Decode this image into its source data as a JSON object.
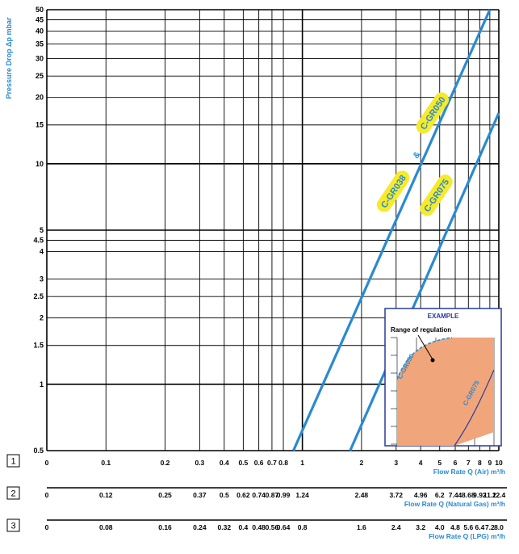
{
  "chart_data": {
    "type": "line",
    "ylabel": "Pressure Drop Δp mbar",
    "y_scale": "log",
    "ylim": [
      0.5,
      50
    ],
    "y_ticks": [
      "0.5",
      "1",
      "1.5",
      "2",
      "2.5",
      "3",
      "4",
      "4.5",
      "5",
      "10",
      "15",
      "20",
      "25",
      "30",
      "35",
      "40",
      "45",
      "50"
    ],
    "y_ticks_values": [
      0.5,
      1,
      1.5,
      2,
      2.5,
      3,
      4,
      4.5,
      5,
      10,
      15,
      20,
      25,
      30,
      35,
      40,
      45,
      50
    ],
    "x_scale": "log",
    "xlim": [
      0.05,
      10
    ],
    "axes": [
      {
        "number": "1",
        "label": "Flow Rate Q (Air) m³/h",
        "ticks": [
          "0",
          "0.1",
          "0.2",
          "0.3",
          "0.4",
          "0.5",
          "0.6",
          "0.7",
          "0.8",
          "1",
          "2",
          "3",
          "4",
          "5",
          "6",
          "7",
          "8",
          "9",
          "10"
        ],
        "ticks_at_air": [
          0.05,
          0.1,
          0.2,
          0.3,
          0.4,
          0.5,
          0.6,
          0.7,
          0.8,
          1,
          2,
          3,
          4,
          5,
          6,
          7,
          8,
          9,
          10
        ]
      },
      {
        "number": "2",
        "label": "Flow Rate Q (Natural Gas) m³/h",
        "ticks": [
          "0",
          "0.12",
          "0.25",
          "0.37",
          "0.5",
          "0.62",
          "0.74",
          "0.87",
          "0.99",
          "1.24",
          "2.48",
          "3.72",
          "4.96",
          "6.2",
          "7.44",
          "8.68",
          "9.92",
          "11.2",
          "12.4"
        ],
        "ticks_at_air": [
          0.05,
          0.1,
          0.2,
          0.3,
          0.4,
          0.5,
          0.6,
          0.7,
          0.8,
          1,
          2,
          3,
          4,
          5,
          6,
          7,
          8,
          9,
          10
        ]
      },
      {
        "number": "3",
        "label": "Flow Rate Q (LPG) m³/h",
        "ticks": [
          "0",
          "0.08",
          "0.16",
          "0.24",
          "0.32",
          "0.4",
          "0.48",
          "0.56",
          "0.64",
          "0.8",
          "1.6",
          "2.4",
          "3.2",
          "4.0",
          "4.8",
          "5.6",
          "6.4",
          "7.2",
          "8.0"
        ],
        "ticks_at_air": [
          0.05,
          0.1,
          0.2,
          0.3,
          0.4,
          0.5,
          0.6,
          0.7,
          0.8,
          1,
          2,
          3,
          4,
          5,
          6,
          7,
          8,
          9,
          10
        ]
      }
    ],
    "series": [
      {
        "name": "C-GR038 & C-GR050",
        "x": [
          0.9,
          9.0
        ],
        "y": [
          0.5,
          50
        ]
      },
      {
        "name": "C-GR075",
        "x": [
          1.75,
          10
        ],
        "y": [
          0.5,
          17
        ]
      }
    ],
    "labels": [
      {
        "text": "C-GR038",
        "x": 2.9,
        "y": 7.5,
        "angle": -56
      },
      {
        "text": "&",
        "x": 3.8,
        "y": 11,
        "angle": -56
      },
      {
        "text": "C-GR050",
        "x": 4.6,
        "y": 17,
        "angle": -56
      },
      {
        "text": "C-GR075",
        "x": 4.8,
        "y": 7.2,
        "angle": -56
      }
    ],
    "example": {
      "title": "EXAMPLE",
      "note": "Range of regulation",
      "upper": "C-GR050",
      "lower": "C-GR075"
    },
    "colors": {
      "line": "#2a8ad0",
      "label_bg": "#f6ea2a",
      "label_text": "#2a8ad0",
      "region": "#f0a57a",
      "grid": "#000000"
    }
  }
}
